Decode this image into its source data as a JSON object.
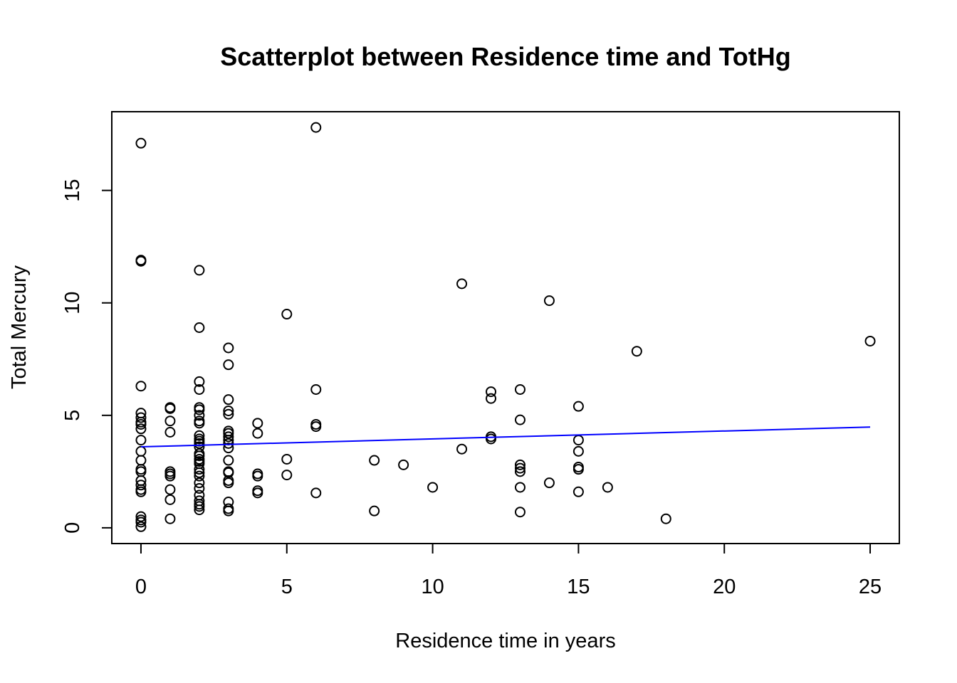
{
  "chart_data": {
    "type": "scatter",
    "title": "Scatterplot between Residence time and TotHg",
    "xlabel": "Residence time in years",
    "ylabel": "Total Mercury",
    "xlim": [
      -1,
      26
    ],
    "ylim": [
      -0.7,
      18.5
    ],
    "x_ticks": [
      0,
      5,
      10,
      15,
      20,
      25
    ],
    "y_ticks": [
      0,
      5,
      10,
      15
    ],
    "grid": false,
    "point_color": "#000000",
    "trend_color": "#0000ff",
    "trend_line": {
      "x": [
        0,
        25
      ],
      "y": [
        3.6,
        4.48
      ]
    },
    "points": [
      [
        0,
        17.1
      ],
      [
        0,
        11.9
      ],
      [
        0,
        11.85
      ],
      [
        0,
        6.3
      ],
      [
        0,
        5.1
      ],
      [
        0,
        4.9
      ],
      [
        0,
        4.7
      ],
      [
        0,
        4.6
      ],
      [
        0,
        4.4
      ],
      [
        0,
        3.9
      ],
      [
        0,
        3.4
      ],
      [
        0,
        3.0
      ],
      [
        0,
        2.6
      ],
      [
        0,
        2.5
      ],
      [
        0,
        2.1
      ],
      [
        0,
        1.9
      ],
      [
        0,
        1.7
      ],
      [
        0,
        1.6
      ],
      [
        0,
        0.5
      ],
      [
        0,
        0.35
      ],
      [
        0,
        0.25
      ],
      [
        0,
        0.05
      ],
      [
        1,
        5.35
      ],
      [
        1,
        5.3
      ],
      [
        1,
        4.75
      ],
      [
        1,
        4.25
      ],
      [
        1,
        2.5
      ],
      [
        1,
        2.4
      ],
      [
        1,
        2.3
      ],
      [
        1,
        1.7
      ],
      [
        1,
        1.25
      ],
      [
        1,
        0.4
      ],
      [
        2,
        11.45
      ],
      [
        2,
        8.9
      ],
      [
        2,
        6.5
      ],
      [
        2,
        6.15
      ],
      [
        2,
        5.35
      ],
      [
        2,
        5.25
      ],
      [
        2,
        5.0
      ],
      [
        2,
        4.75
      ],
      [
        2,
        4.65
      ],
      [
        2,
        4.1
      ],
      [
        2,
        3.95
      ],
      [
        2,
        3.85
      ],
      [
        2,
        3.75
      ],
      [
        2,
        3.6
      ],
      [
        2,
        3.3
      ],
      [
        2,
        3.2
      ],
      [
        2,
        3.05
      ],
      [
        2,
        2.95
      ],
      [
        2,
        2.85
      ],
      [
        2,
        2.6
      ],
      [
        2,
        2.45
      ],
      [
        2,
        2.3
      ],
      [
        2,
        2.0
      ],
      [
        2,
        1.75
      ],
      [
        2,
        1.45
      ],
      [
        2,
        1.2
      ],
      [
        2,
        1.05
      ],
      [
        2,
        0.95
      ],
      [
        2,
        0.8
      ],
      [
        3,
        8.0
      ],
      [
        3,
        7.25
      ],
      [
        3,
        5.7
      ],
      [
        3,
        5.2
      ],
      [
        3,
        5.05
      ],
      [
        3,
        4.3
      ],
      [
        3,
        4.2
      ],
      [
        3,
        4.05
      ],
      [
        3,
        3.9
      ],
      [
        3,
        3.75
      ],
      [
        3,
        3.55
      ],
      [
        3,
        3.0
      ],
      [
        3,
        2.5
      ],
      [
        3,
        2.45
      ],
      [
        3,
        2.1
      ],
      [
        3,
        2.0
      ],
      [
        3,
        1.15
      ],
      [
        3,
        0.85
      ],
      [
        3,
        0.75
      ],
      [
        4,
        4.65
      ],
      [
        4,
        4.2
      ],
      [
        4,
        2.4
      ],
      [
        4,
        2.3
      ],
      [
        4,
        1.65
      ],
      [
        4,
        1.55
      ],
      [
        5,
        9.5
      ],
      [
        5,
        3.05
      ],
      [
        5,
        2.35
      ],
      [
        6,
        17.8
      ],
      [
        6,
        6.15
      ],
      [
        6,
        4.6
      ],
      [
        6,
        4.5
      ],
      [
        6,
        1.55
      ],
      [
        8,
        3.0
      ],
      [
        8,
        0.75
      ],
      [
        9,
        2.8
      ],
      [
        10,
        1.8
      ],
      [
        11,
        10.85
      ],
      [
        11,
        3.5
      ],
      [
        12,
        6.05
      ],
      [
        12,
        5.75
      ],
      [
        12,
        4.05
      ],
      [
        12,
        3.95
      ],
      [
        13,
        6.15
      ],
      [
        13,
        4.8
      ],
      [
        13,
        2.8
      ],
      [
        13,
        2.65
      ],
      [
        13,
        2.5
      ],
      [
        13,
        1.8
      ],
      [
        13,
        0.7
      ],
      [
        14,
        10.1
      ],
      [
        14,
        2.0
      ],
      [
        15,
        5.4
      ],
      [
        15,
        3.9
      ],
      [
        15,
        3.4
      ],
      [
        15,
        2.7
      ],
      [
        15,
        2.6
      ],
      [
        15,
        1.6
      ],
      [
        16,
        1.8
      ],
      [
        17,
        7.85
      ],
      [
        18,
        0.4
      ],
      [
        25,
        8.3
      ]
    ]
  }
}
